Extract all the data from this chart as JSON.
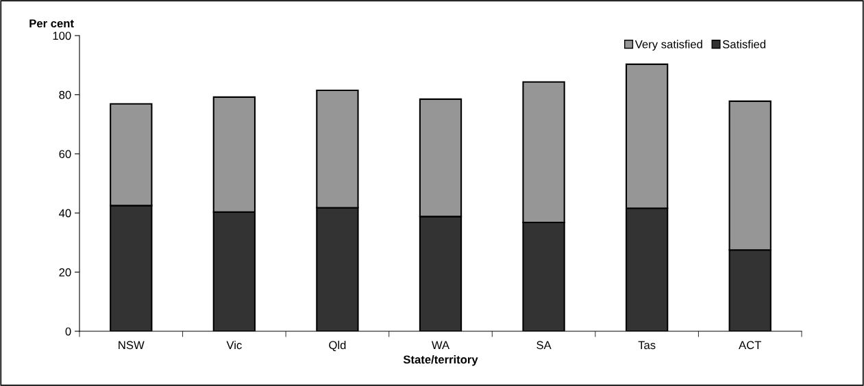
{
  "chart_data": {
    "type": "bar",
    "stacked": true,
    "ylabel": "Per cent",
    "xlabel": "State/territory",
    "categories": [
      "NSW",
      "Vic",
      "Qld",
      "WA",
      "SA",
      "Tas",
      "ACT"
    ],
    "series": [
      {
        "name": "Satisfied",
        "color": "#333333",
        "values": [
          42.5,
          40.3,
          41.8,
          38.8,
          36.8,
          41.6,
          27.5
        ]
      },
      {
        "name": "Very satisfied",
        "color": "#969696",
        "values": [
          34.4,
          38.9,
          39.7,
          39.7,
          47.5,
          48.7,
          50.3
        ]
      }
    ],
    "ylim": [
      0,
      100
    ],
    "yticks": [
      0,
      20,
      40,
      60,
      80,
      100
    ],
    "grid": false,
    "legend": "top right"
  }
}
